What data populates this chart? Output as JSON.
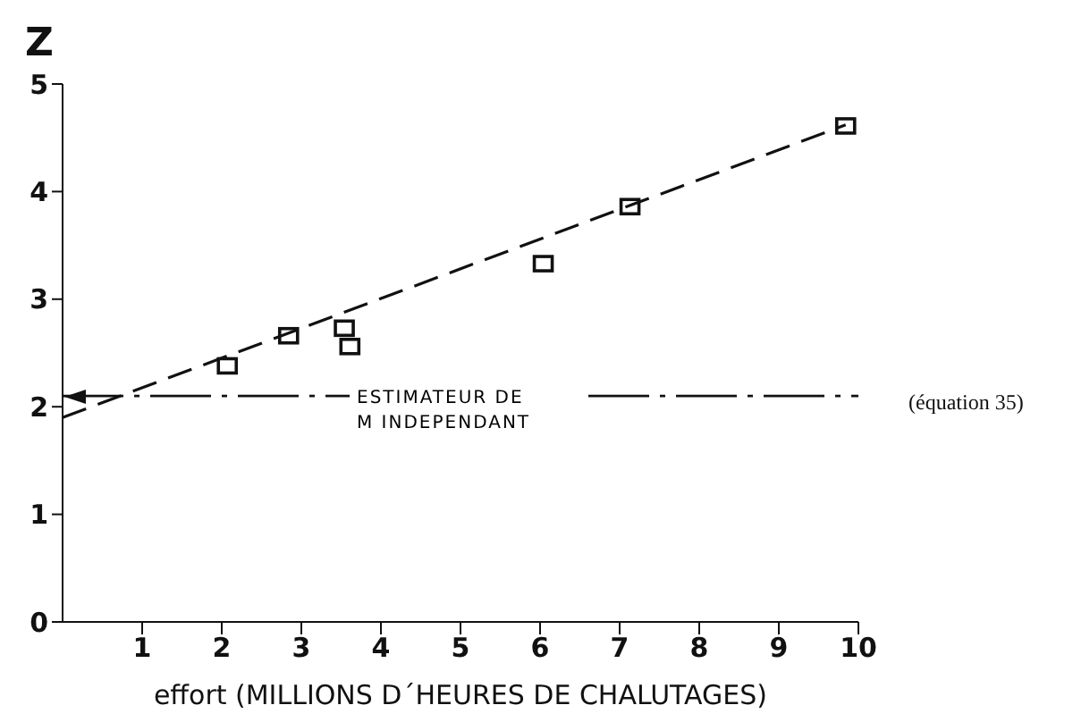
{
  "chart_data": {
    "type": "scatter",
    "xlabel": "effort (MILLIONS D´HEURES DE CHALUTAGES)",
    "ylabel": "Z",
    "xlim": [
      0,
      10
    ],
    "xticks": [
      1,
      2,
      3,
      4,
      5,
      6,
      7,
      8,
      9,
      10
    ],
    "ylim": [
      0,
      5
    ],
    "yticks": [
      0,
      1,
      2,
      3,
      4,
      5
    ],
    "grid": false,
    "legend": false,
    "series": [
      {
        "color": "#111111",
        "marker": "square",
        "x": [
          2.07,
          2.84,
          3.54,
          3.61,
          6.04,
          7.13,
          9.84
        ],
        "values": [
          2.38,
          2.66,
          2.73,
          2.56,
          3.33,
          3.86,
          4.61
        ]
      },
      {
        "type": "line",
        "color": "#111111",
        "marker": "none",
        "line_style": "dashed",
        "x": [
          0,
          9.84
        ],
        "values": [
          1.9,
          4.62
        ]
      }
    ],
    "ref_lines": [
      {
        "axis": "y",
        "value": 2.1,
        "label": "ESTIMATEUR DE M INDEPENDANT",
        "color": "#111111",
        "line_style": "dashdot"
      }
    ],
    "annotations": [
      "(équation 35)"
    ]
  }
}
